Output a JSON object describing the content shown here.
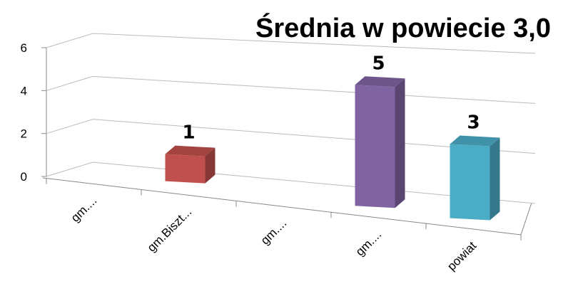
{
  "chart_data": {
    "type": "bar3d",
    "title": "Średnia w powiecie 3,0",
    "categories": [
      "gm....",
      "gm.Biszt...",
      "gm....",
      "gm....",
      "powiat"
    ],
    "values": [
      null,
      1,
      null,
      5,
      3
    ],
    "colors": [
      "#c0504d",
      "#c0504d",
      "#9bbb59",
      "#8064a2",
      "#4bacc6"
    ],
    "ylim": [
      0,
      6
    ],
    "yticks": [
      0,
      2,
      4,
      6
    ],
    "grid": true
  }
}
